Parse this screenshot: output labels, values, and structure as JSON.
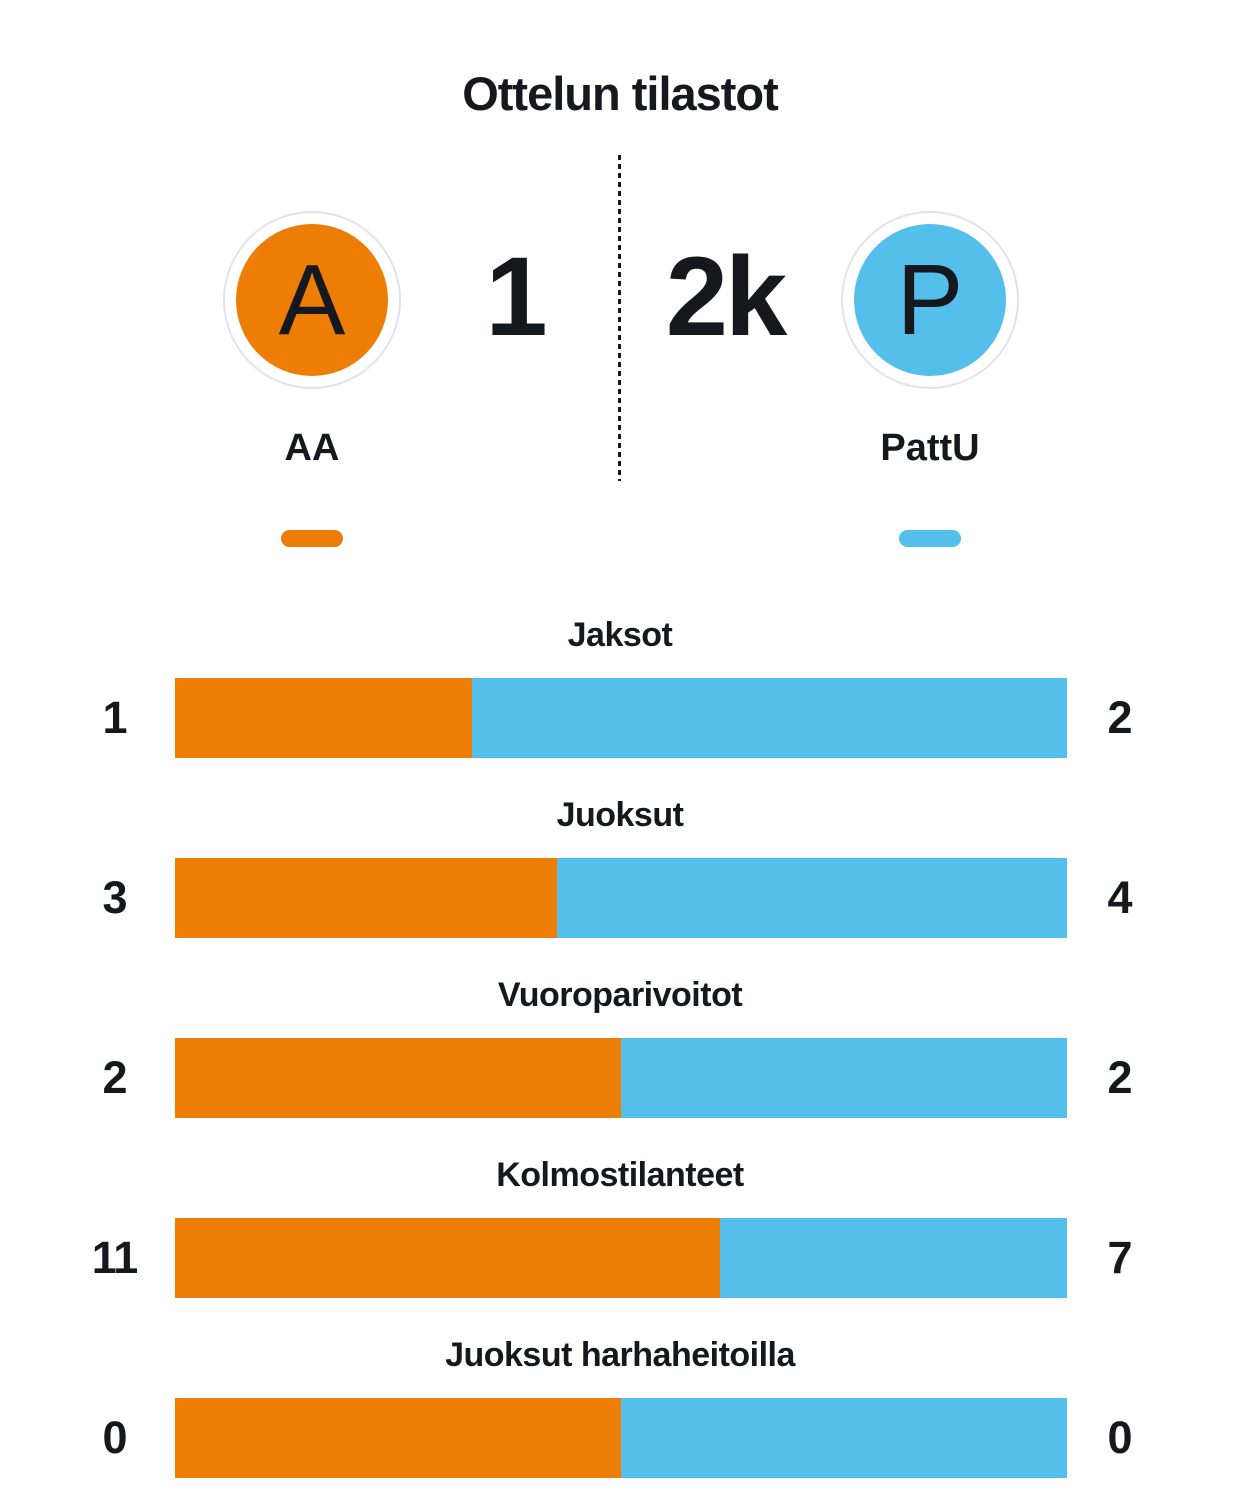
{
  "colors": {
    "home": "#ED7D05",
    "away": "#54BFEA",
    "text": "#15191E",
    "badge_ring": "#E0E3EB",
    "background": "#FFFFFF"
  },
  "header": {
    "title": "Ottelun tilastot",
    "home_team": {
      "initial": "A",
      "name": "AA",
      "score": "1"
    },
    "away_team": {
      "initial": "P",
      "name": "PattU",
      "score": "2k"
    }
  },
  "chart_data": {
    "type": "bar",
    "variant": "horizontal-stacked-comparison",
    "title": "Ottelun tilastot",
    "categories": [
      "Jaksot",
      "Juoksut",
      "Vuoroparivoitot",
      "Kolmostilanteet",
      "Juoksut harhaheitoilla"
    ],
    "series": [
      {
        "name": "AA",
        "color": "#ED7D05",
        "values": [
          1,
          3,
          2,
          11,
          0
        ]
      },
      {
        "name": "PattU",
        "color": "#54BFEA",
        "values": [
          2,
          4,
          2,
          7,
          0
        ]
      }
    ],
    "value_labels": "both-ends",
    "legend_position": "top",
    "grid": false,
    "equal_split_when_sum_zero": true
  }
}
